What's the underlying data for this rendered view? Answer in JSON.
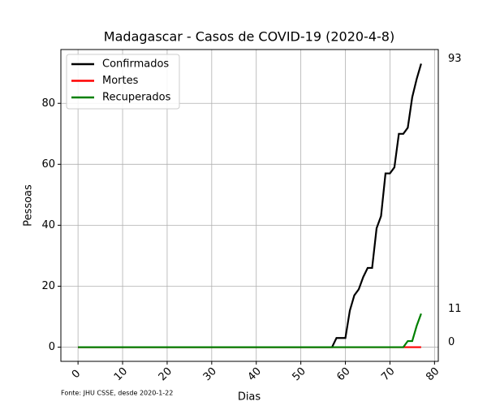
{
  "chart_data": {
    "type": "line",
    "title": "Madagascar - Casos de COVID-19 (2020-4-8)",
    "x_label": "Dias",
    "y_label": "Pessoas",
    "source": "Fonte: JHU CSSE, desde 2020-1-22",
    "x": [
      0,
      1,
      2,
      3,
      4,
      5,
      6,
      7,
      8,
      9,
      10,
      11,
      12,
      13,
      14,
      15,
      16,
      17,
      18,
      19,
      20,
      21,
      22,
      23,
      24,
      25,
      26,
      27,
      28,
      29,
      30,
      31,
      32,
      33,
      34,
      35,
      36,
      37,
      38,
      39,
      40,
      41,
      42,
      43,
      44,
      45,
      46,
      47,
      48,
      49,
      50,
      51,
      52,
      53,
      54,
      55,
      56,
      57,
      58,
      59,
      60,
      61,
      62,
      63,
      64,
      65,
      66,
      67,
      68,
      69,
      70,
      71,
      72,
      73,
      74,
      75,
      76,
      77
    ],
    "series": [
      {
        "name": "Confirmados",
        "color": "#000000",
        "values": [
          0,
          0,
          0,
          0,
          0,
          0,
          0,
          0,
          0,
          0,
          0,
          0,
          0,
          0,
          0,
          0,
          0,
          0,
          0,
          0,
          0,
          0,
          0,
          0,
          0,
          0,
          0,
          0,
          0,
          0,
          0,
          0,
          0,
          0,
          0,
          0,
          0,
          0,
          0,
          0,
          0,
          0,
          0,
          0,
          0,
          0,
          0,
          0,
          0,
          0,
          0,
          0,
          0,
          0,
          0,
          0,
          0,
          0,
          3,
          3,
          3,
          12,
          17,
          19,
          23,
          26,
          26,
          39,
          43,
          57,
          57,
          59,
          70,
          70,
          72,
          82,
          88,
          93
        ]
      },
      {
        "name": "Mortes",
        "color": "#ff0000",
        "values": [
          0,
          0,
          0,
          0,
          0,
          0,
          0,
          0,
          0,
          0,
          0,
          0,
          0,
          0,
          0,
          0,
          0,
          0,
          0,
          0,
          0,
          0,
          0,
          0,
          0,
          0,
          0,
          0,
          0,
          0,
          0,
          0,
          0,
          0,
          0,
          0,
          0,
          0,
          0,
          0,
          0,
          0,
          0,
          0,
          0,
          0,
          0,
          0,
          0,
          0,
          0,
          0,
          0,
          0,
          0,
          0,
          0,
          0,
          0,
          0,
          0,
          0,
          0,
          0,
          0,
          0,
          0,
          0,
          0,
          0,
          0,
          0,
          0,
          0,
          0,
          0,
          0,
          0
        ]
      },
      {
        "name": "Recuperados",
        "color": "#008000",
        "values": [
          0,
          0,
          0,
          0,
          0,
          0,
          0,
          0,
          0,
          0,
          0,
          0,
          0,
          0,
          0,
          0,
          0,
          0,
          0,
          0,
          0,
          0,
          0,
          0,
          0,
          0,
          0,
          0,
          0,
          0,
          0,
          0,
          0,
          0,
          0,
          0,
          0,
          0,
          0,
          0,
          0,
          0,
          0,
          0,
          0,
          0,
          0,
          0,
          0,
          0,
          0,
          0,
          0,
          0,
          0,
          0,
          0,
          0,
          0,
          0,
          0,
          0,
          0,
          0,
          0,
          0,
          0,
          0,
          0,
          0,
          0,
          0,
          0,
          0,
          2,
          2,
          7,
          11
        ]
      }
    ],
    "xlim": [
      -3.85,
      80.85
    ],
    "xticks": [
      0,
      10,
      20,
      30,
      40,
      50,
      60,
      70,
      80
    ],
    "ylim": [
      -4.65,
      97.65
    ],
    "yticks": [
      0,
      20,
      40,
      60,
      80
    ],
    "grid": true,
    "legend": "upper-left"
  }
}
